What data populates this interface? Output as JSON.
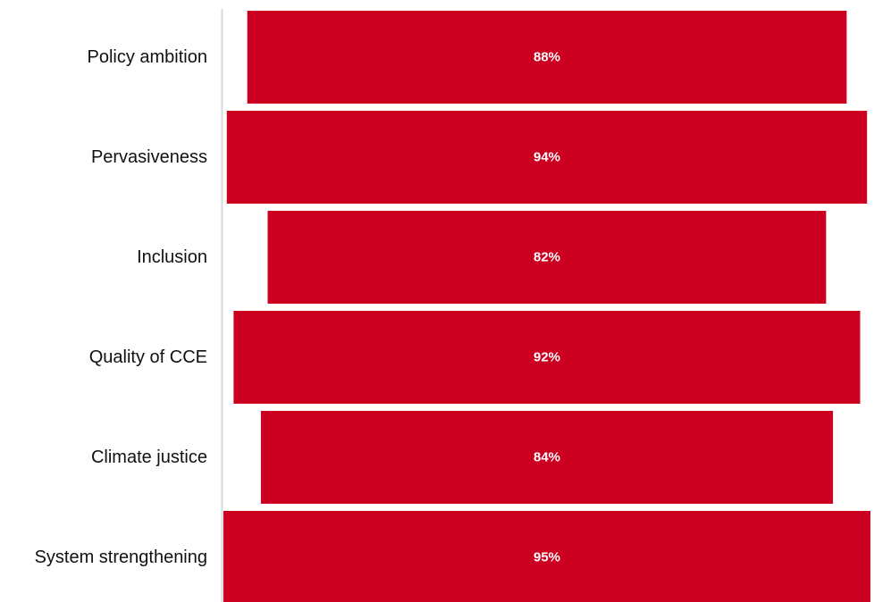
{
  "chart_data": {
    "type": "bar",
    "orientation": "horizontal-centered",
    "categories": [
      "Policy ambition",
      "Pervasiveness",
      "Inclusion",
      "Quality of CCE",
      "Climate justice",
      "System strengthening"
    ],
    "values": [
      88,
      94,
      82,
      92,
      84,
      95
    ],
    "value_labels": [
      "88%",
      "94%",
      "82%",
      "92%",
      "84%",
      "95%"
    ],
    "unit": "%",
    "xlim": [
      0,
      95
    ],
    "grid": false,
    "legend": "none",
    "colors": {
      "bar": "#cc0020",
      "axis": "#d9d9d9",
      "value_text": "#ffffff",
      "label_text": "#111111"
    }
  }
}
